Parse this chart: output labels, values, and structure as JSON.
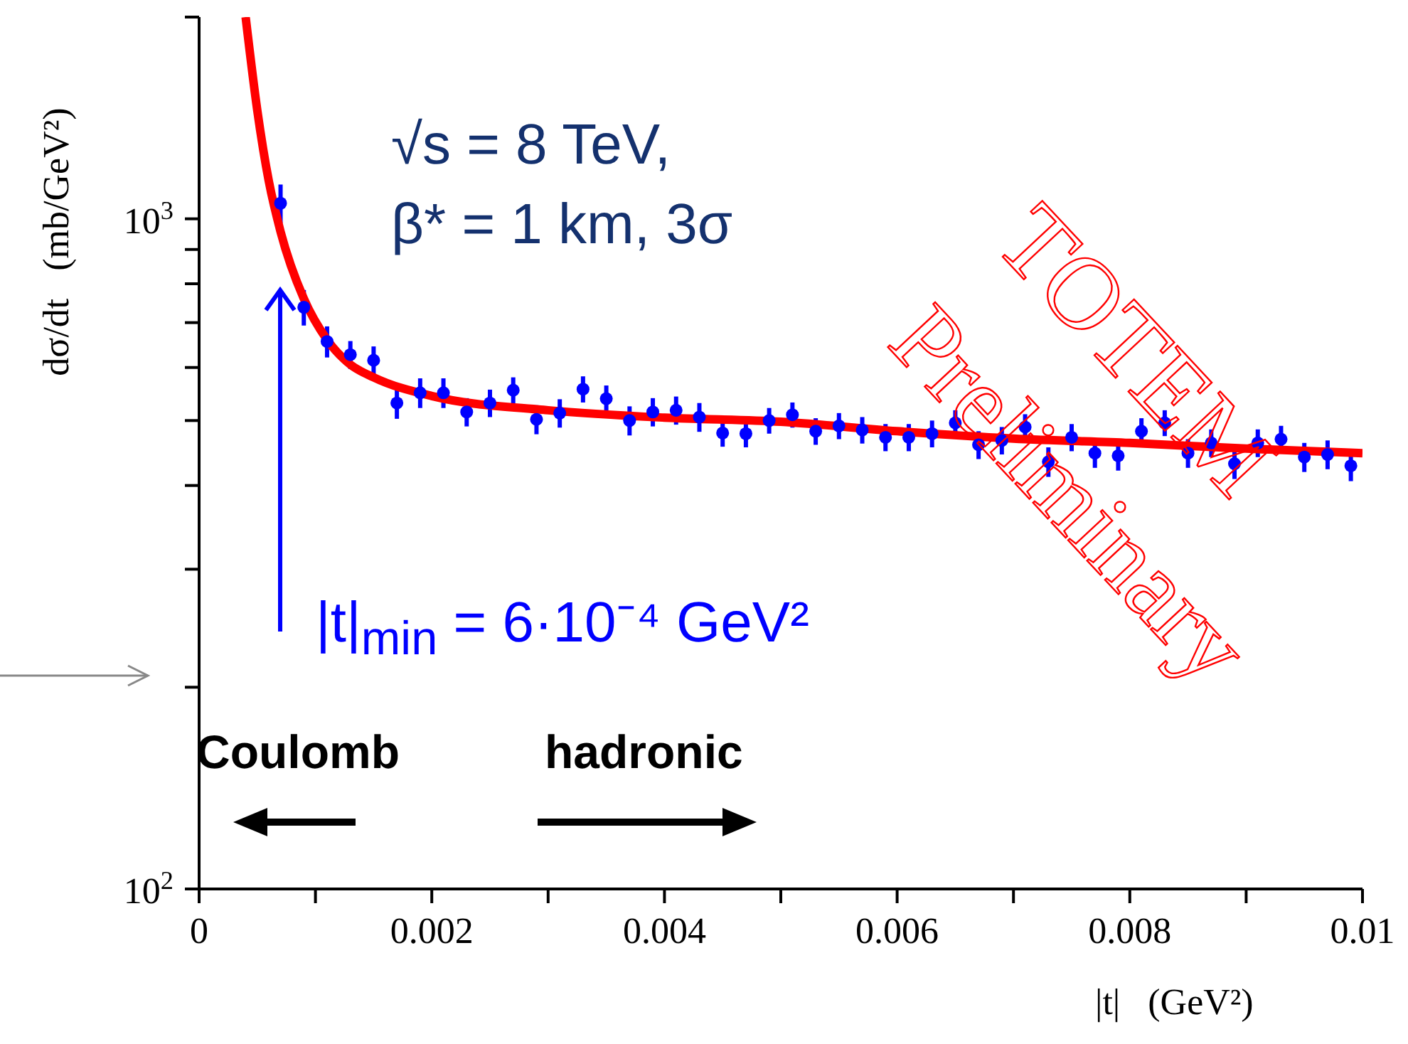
{
  "chart_data": {
    "type": "scatter",
    "xlabel": "|t|   (GeV²)",
    "ylabel": "dσ/dt   (mb/GeV²)",
    "annotations": [
      "√s = 8 TeV,",
      "β* = 1 km, 3σ",
      "|t|$_{min}$ = 6·10⁻⁴ GeV²",
      "Coulomb",
      "hadronic",
      "TOTEM",
      "Preliminary"
    ],
    "series": [
      {
        "color": "#0000ff",
        "marker": "circle",
        "x": [
          0.0007,
          0.0009,
          0.0011,
          0.0013,
          0.0015,
          0.0017,
          0.0019,
          0.0021,
          0.0023,
          0.0025,
          0.0027,
          0.0029,
          0.0031,
          0.0033,
          0.0035,
          0.0037,
          0.0039,
          0.0041,
          0.0043,
          0.0045,
          0.0047,
          0.0049,
          0.0051,
          0.0053,
          0.0055,
          0.0057,
          0.0059,
          0.0061,
          0.0063,
          0.0065,
          0.0067,
          0.0069,
          0.0071,
          0.0073,
          0.0075,
          0.0077,
          0.0079,
          0.0081,
          0.0083,
          0.0085,
          0.0087,
          0.0089,
          0.0091,
          0.0093,
          0.0095,
          0.0097,
          0.0099
        ],
        "values": [
          1055,
          738,
          656,
          627,
          615,
          531,
          550,
          550,
          515,
          531,
          555,
          502,
          513,
          557,
          539,
          500,
          515,
          518,
          506,
          479,
          478,
          500,
          510,
          482,
          491,
          484,
          472,
          472,
          478,
          496,
          460,
          467,
          489,
          434,
          472,
          447,
          443,
          482,
          496,
          447,
          463,
          431,
          463,
          469,
          441,
          445,
          428
        ],
        "errors": [
          70,
          45,
          35,
          30,
          30,
          28,
          28,
          28,
          25,
          25,
          25,
          25,
          25,
          25,
          25,
          25,
          25,
          25,
          25,
          22,
          22,
          22,
          22,
          22,
          22,
          22,
          22,
          22,
          22,
          22,
          22,
          22,
          22,
          22,
          22,
          22,
          22,
          22,
          22,
          22,
          22,
          22,
          22,
          22,
          22,
          22,
          22
        ]
      },
      {
        "type": "line",
        "marker": "none",
        "color": "#ff0000",
        "x": [
          0.0004,
          0.0005,
          0.0006,
          0.0007,
          0.0009,
          0.0011,
          0.0013,
          0.0015,
          0.002,
          0.003,
          0.004,
          0.005,
          0.006,
          0.007,
          0.008,
          0.009,
          0.01
        ],
        "values": [
          2000,
          1452,
          1136,
          957,
          760,
          660,
          606,
          580,
          544,
          518,
          505,
          498,
          482,
          470,
          463,
          454,
          447
        ]
      }
    ],
    "xlim": [
      0,
      0.01
    ],
    "xticks": [
      0,
      {
        "value": 0.001,
        "label": null
      },
      0.002,
      {
        "value": 0.003,
        "label": null
      },
      0.004,
      {
        "value": 0.005,
        "label": null
      },
      0.006,
      {
        "value": 0.007,
        "label": null
      },
      0.008,
      {
        "value": 0.009,
        "label": null
      },
      0.01
    ],
    "ylim": [
      100,
      2000
    ],
    "yticks": [
      {
        "value": 100,
        "label": "10$^{2}$"
      },
      {
        "value": 200,
        "label": null
      },
      {
        "value": 300,
        "label": null
      },
      {
        "value": 400,
        "label": null
      },
      {
        "value": 500,
        "label": null
      },
      {
        "value": 600,
        "label": null
      },
      {
        "value": 700,
        "label": null
      },
      {
        "value": 800,
        "label": null
      },
      {
        "value": 900,
        "label": null
      },
      {
        "value": 1000,
        "label": "10$^{3}$"
      },
      {
        "value": 2000,
        "label": null
      }
    ],
    "log": "y",
    "grid": false,
    "legend": false
  }
}
